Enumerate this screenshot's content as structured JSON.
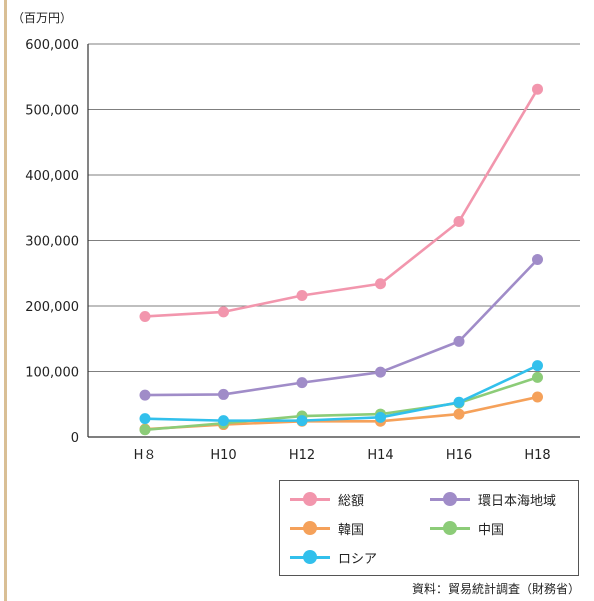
{
  "chart_data": {
    "type": "line",
    "unit_label": "（百万円）",
    "categories": [
      "H８",
      "H10",
      "H12",
      "H14",
      "H16",
      "H18"
    ],
    "yticks": [
      "0",
      "100,000",
      "200,000",
      "300,000",
      "400,000",
      "500,000",
      "600,000"
    ],
    "ylim": [
      0,
      600000
    ],
    "grid": true,
    "legend_position": "bottom-right",
    "series": [
      {
        "name": "総額",
        "color": "#f296ad",
        "values": [
          184000,
          191000,
          216000,
          234000,
          329000,
          531000
        ]
      },
      {
        "name": "環日本海地域",
        "color": "#a08cc8",
        "values": [
          64000,
          65000,
          83000,
          99000,
          146000,
          271000
        ]
      },
      {
        "name": "韓国",
        "color": "#f5a15a",
        "values": [
          12000,
          19000,
          24000,
          24000,
          35000,
          61000
        ]
      },
      {
        "name": "中国",
        "color": "#8ccc78",
        "values": [
          11000,
          21000,
          32000,
          35000,
          52000,
          91000
        ]
      },
      {
        "name": "ロシア",
        "color": "#32c0ec",
        "values": [
          28000,
          25000,
          25000,
          30000,
          53000,
          109000
        ]
      }
    ]
  },
  "source": "資料：貿易統計調査（財務省）"
}
